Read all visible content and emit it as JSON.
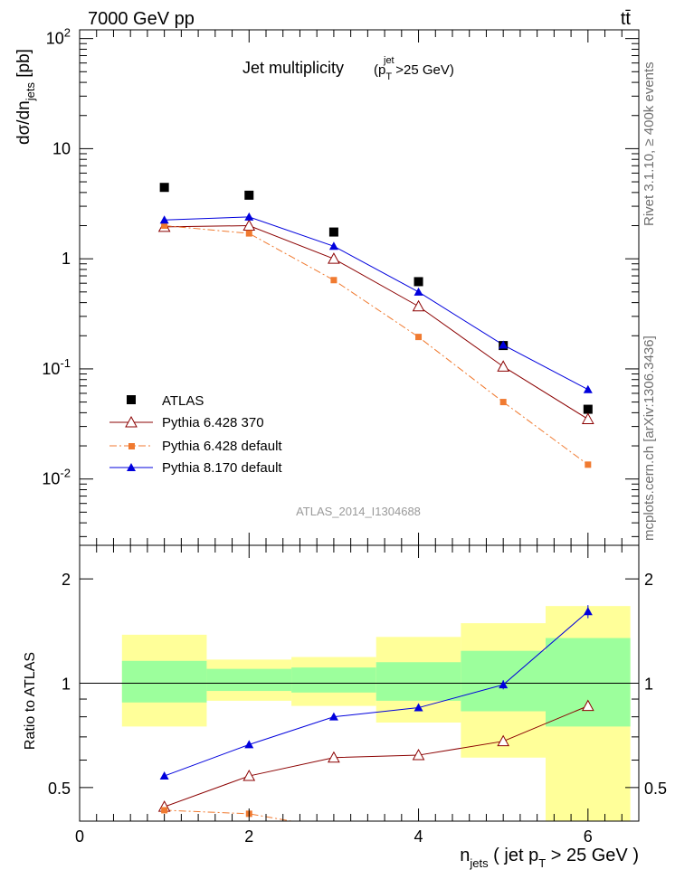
{
  "header": {
    "left": "7000 GeV pp",
    "right": "tt̄"
  },
  "side_labels": {
    "rivet": "Rivet 3.1.10, ≥ 400k events",
    "mcplots": "mcplots.cern.ch [arXiv:1306.3436]"
  },
  "colors": {
    "atlas": "#000000",
    "p6_370": "#8b0000",
    "p6_default": "#f07a30",
    "p8_default": "#0000dd",
    "band_green": "#9cff9c",
    "band_yellow": "#ffff99"
  },
  "chart_data": [
    {
      "type": "scatter",
      "title": "Jet multiplicity",
      "title_cut": "(p_T^jet > 25 GeV)",
      "ylabel": "dσ/dn_jets [pb]",
      "yscale": "log",
      "ylim": [
        0.0025,
        120
      ],
      "xlim": [
        0,
        6.6
      ],
      "y_tick_labels": [
        "10^-2",
        "10^-1",
        "1",
        "10",
        "10^2"
      ],
      "watermark": "ATLAS_2014_I1304688",
      "legend_position": "lower-left",
      "series": [
        {
          "name": "ATLAS",
          "style": "square-marker",
          "x": [
            1,
            2,
            3,
            4,
            5,
            6
          ],
          "y": [
            4.45,
            3.78,
            1.75,
            0.62,
            0.163,
            0.043
          ]
        },
        {
          "name": "Pythia 6.428 370",
          "style": "line-open-triangle",
          "x": [
            1,
            2,
            3,
            4,
            5,
            6
          ],
          "y": [
            1.95,
            2.0,
            1.0,
            0.37,
            0.105,
            0.035
          ]
        },
        {
          "name": "Pythia 6.428 default",
          "style": "dashdot-square",
          "x": [
            1,
            2,
            3,
            4,
            5,
            6
          ],
          "y": [
            2.0,
            1.7,
            0.64,
            0.195,
            0.05,
            0.0135
          ]
        },
        {
          "name": "Pythia 8.170 default",
          "style": "line-filled-triangle",
          "x": [
            1,
            2,
            3,
            4,
            5,
            6
          ],
          "y": [
            2.25,
            2.4,
            1.3,
            0.5,
            0.165,
            0.065
          ]
        }
      ]
    },
    {
      "type": "scatter",
      "ylabel": "Ratio to ATLAS",
      "xlabel": "n_jets ( jet p_T > 25 GeV )",
      "yscale": "log",
      "ylim": [
        0.4,
        2.5
      ],
      "xlim": [
        0,
        6.6
      ],
      "x_ticks": [
        0,
        2,
        4,
        6
      ],
      "y_ticks": [
        0.5,
        1,
        2
      ],
      "reference_line": 1,
      "bands": {
        "x_low": [
          0.5,
          1.5,
          2.5,
          3.5,
          4.5,
          5.5
        ],
        "x_high": [
          1.5,
          2.5,
          3.5,
          4.5,
          5.5,
          6.5
        ],
        "inner_low": [
          0.88,
          0.95,
          0.94,
          0.89,
          0.83,
          0.75
        ],
        "inner_high": [
          1.16,
          1.1,
          1.11,
          1.15,
          1.24,
          1.35
        ],
        "outer_low": [
          0.75,
          0.89,
          0.86,
          0.77,
          0.61,
          0.38
        ],
        "outer_high": [
          1.38,
          1.17,
          1.19,
          1.36,
          1.49,
          1.67
        ]
      },
      "series": [
        {
          "name": "Pythia 6.428 370",
          "x": [
            1,
            2,
            3,
            4,
            5,
            6
          ],
          "y": [
            0.44,
            0.54,
            0.61,
            0.62,
            0.68,
            0.86
          ]
        },
        {
          "name": "Pythia 6.428 default",
          "x": [
            1,
            2,
            2.5
          ],
          "y": [
            0.43,
            0.42,
            0.365
          ]
        },
        {
          "name": "Pythia 8.170 default",
          "x": [
            1,
            2,
            3,
            4,
            5,
            6
          ],
          "y": [
            0.54,
            0.665,
            0.8,
            0.85,
            0.99,
            1.61
          ],
          "y_err": [
            0,
            0,
            0,
            0,
            0.03,
            0.07
          ]
        }
      ]
    }
  ]
}
